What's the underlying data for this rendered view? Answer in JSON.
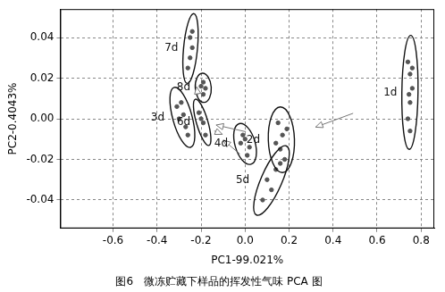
{
  "chart_data": {
    "type": "scatter",
    "title": "图6　微冻贮藏下样品的挥发性气味 PCA 图",
    "x_label": "PC1-99.021%",
    "y_label": "PC2-0.4043%",
    "xlim": [
      -0.84,
      0.86
    ],
    "xticks": [
      -0.6,
      -0.4,
      -0.2,
      {
        "value": 0,
        "label": "0.0"
      },
      0.2,
      0.4,
      0.6,
      0.8
    ],
    "ylim": [
      -0.054,
      0.054
    ],
    "yticks": [
      -0.04,
      -0.02,
      {
        "value": 0,
        "label": "0.00"
      },
      0.02,
      0.04
    ],
    "grid": true,
    "marker": "circle",
    "series": [
      {
        "name": "1d",
        "color": "#555555",
        "x": [
          0.74,
          0.75,
          0.76,
          0.75,
          0.74,
          0.75,
          0.76,
          0.745
        ],
        "values": [
          0.028,
          0.022,
          0.015,
          0.008,
          0.0,
          -0.006,
          0.025,
          0.012
        ]
      },
      {
        "name": "2d",
        "color": "#555555",
        "x": [
          0.15,
          0.17,
          0.16,
          0.18,
          0.14,
          0.19
        ],
        "values": [
          -0.002,
          -0.008,
          -0.015,
          -0.02,
          -0.012,
          -0.005
        ]
      },
      {
        "name": "3d",
        "color": "#555555",
        "x": [
          -0.31,
          -0.28,
          -0.27,
          -0.3,
          -0.26,
          -0.29
        ],
        "values": [
          0.006,
          0.002,
          -0.004,
          0.0,
          -0.008,
          0.008
        ]
      },
      {
        "name": "4d",
        "color": "#555555",
        "x": [
          -0.02,
          0.0,
          0.02,
          0.01,
          -0.01
        ],
        "values": [
          -0.012,
          -0.01,
          -0.014,
          -0.018,
          -0.008
        ]
      },
      {
        "name": "5d",
        "color": "#555555",
        "x": [
          0.1,
          0.14,
          0.12,
          0.08,
          0.16
        ],
        "values": [
          -0.03,
          -0.025,
          -0.035,
          -0.04,
          -0.022
        ]
      },
      {
        "name": "6d",
        "color": "#555555",
        "x": [
          -0.21,
          -0.19,
          -0.18,
          -0.2
        ],
        "values": [
          0.003,
          -0.002,
          -0.008,
          0.0
        ]
      },
      {
        "name": "7d",
        "color": "#555555",
        "x": [
          -0.25,
          -0.24,
          -0.25,
          -0.26,
          -0.24
        ],
        "values": [
          0.04,
          0.035,
          0.03,
          0.025,
          0.043
        ]
      },
      {
        "name": "8d",
        "color": "#555555",
        "x": [
          -0.19,
          -0.18,
          -0.19,
          -0.2
        ],
        "values": [
          0.018,
          0.015,
          0.012,
          0.016
        ]
      }
    ]
  }
}
